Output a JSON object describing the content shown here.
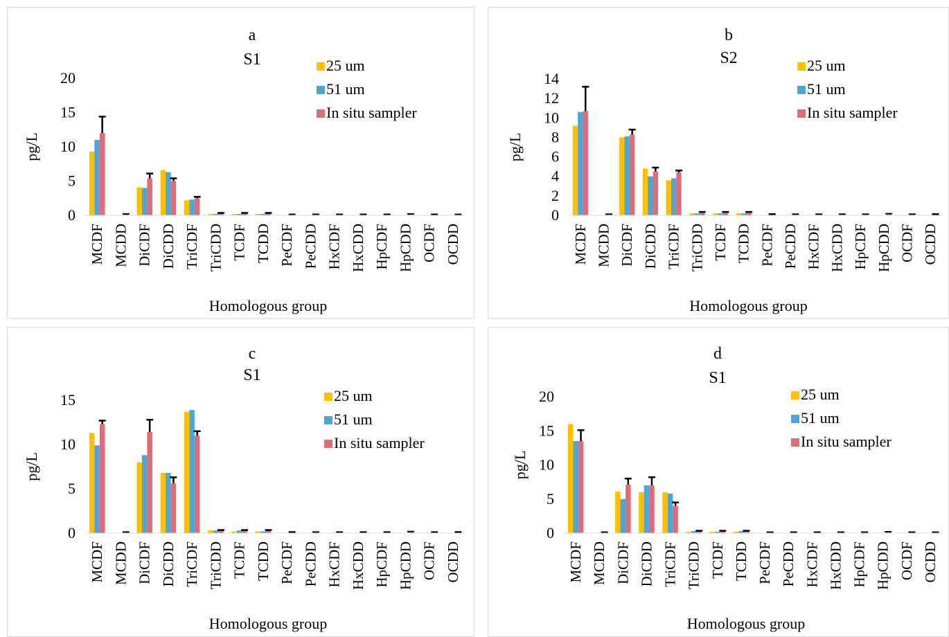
{
  "chart_data": [
    {
      "type": "bar",
      "panel_label": "a",
      "title": "S1",
      "xlabel": "Homologous group",
      "ylabel": "pg/L",
      "ylim": [
        0,
        20
      ],
      "yticks": [
        0,
        5,
        10,
        15,
        20
      ],
      "legend_position": "top-right",
      "categories": [
        "MCDF",
        "MCDD",
        "DiCDF",
        "DiCDD",
        "TriCDF",
        "TriCDD",
        "TCDF",
        "TCDD",
        "PeCDF",
        "PeCDD",
        "HxCDF",
        "HxCDD",
        "HpCDF",
        "HpCDD",
        "OCDF",
        "OCDD"
      ],
      "series": [
        {
          "name": "25 um",
          "color": "#FFC000",
          "values": [
            9.3,
            0,
            4.1,
            6.6,
            2.2,
            0.2,
            0.2,
            0.2,
            0,
            0,
            0,
            0,
            0,
            0,
            0,
            0
          ]
        },
        {
          "name": "51 um",
          "color": "#4FA6D6",
          "values": [
            11.0,
            0,
            4.0,
            6.3,
            2.3,
            0.2,
            0.2,
            0.2,
            0,
            0,
            0,
            0,
            0,
            0,
            0,
            0
          ]
        },
        {
          "name": "In situ sampler",
          "color": "#E06C75",
          "values": [
            12.0,
            0.1,
            5.4,
            5.0,
            2.5,
            0.3,
            0.3,
            0.3,
            0.1,
            0.05,
            0.05,
            0.05,
            0.05,
            0.1,
            0.05,
            0.1
          ],
          "errors": [
            2.4,
            0,
            0.7,
            0.4,
            0.2,
            0.05,
            0.05,
            0.05,
            0.02,
            0,
            0,
            0,
            0,
            0,
            0,
            0.02
          ]
        }
      ]
    },
    {
      "type": "bar",
      "panel_label": "b",
      "title": "S2",
      "xlabel": "Homologous group",
      "ylabel": "pg/L",
      "ylim": [
        0,
        14
      ],
      "yticks": [
        0,
        2,
        4,
        6,
        8,
        10,
        12,
        14
      ],
      "legend_position": "top-right",
      "categories": [
        "MCDF",
        "MCDD",
        "DiCDF",
        "DiCDD",
        "TriCDF",
        "TriCDD",
        "TCDF",
        "TCDD",
        "PeCDF",
        "PeCDD",
        "HxCDF",
        "HxCDD",
        "HpCDF",
        "HpCDD",
        "OCDF",
        "OCDD"
      ],
      "series": [
        {
          "name": "25 um",
          "color": "#FFC000",
          "values": [
            9.2,
            0,
            8.0,
            4.8,
            3.6,
            0.2,
            0.2,
            0.2,
            0,
            0,
            0,
            0,
            0,
            0,
            0,
            0
          ]
        },
        {
          "name": "51 um",
          "color": "#4FA6D6",
          "values": [
            10.6,
            0,
            8.1,
            4.0,
            3.8,
            0.2,
            0.2,
            0.2,
            0,
            0,
            0,
            0,
            0,
            0,
            0,
            0
          ]
        },
        {
          "name": "In situ sampler",
          "color": "#E06C75",
          "values": [
            10.7,
            0.05,
            8.3,
            4.5,
            4.4,
            0.3,
            0.3,
            0.3,
            0.1,
            0.05,
            0.05,
            0.05,
            0.05,
            0.1,
            0.05,
            0.1
          ],
          "errors": [
            2.5,
            0,
            0.5,
            0.4,
            0.2,
            0.05,
            0.05,
            0.05,
            0.02,
            0,
            0,
            0,
            0,
            0,
            0,
            0.02
          ]
        }
      ]
    },
    {
      "type": "bar",
      "panel_label": "c",
      "title": "S1",
      "xlabel": "Homologous group",
      "ylabel": "pg/L",
      "ylim": [
        0,
        15
      ],
      "yticks": [
        0,
        5,
        10,
        15
      ],
      "legend_position": "top-right",
      "categories": [
        "MCDF",
        "MCDD",
        "DiCDF",
        "DiCDD",
        "TriCDF",
        "TriCDD",
        "TCDF",
        "TCDD",
        "PeCDF",
        "PeCDD",
        "HxCDF",
        "HxCDD",
        "HpCDF",
        "HpCDD",
        "OCDF",
        "OCDD"
      ],
      "series": [
        {
          "name": "25 um",
          "color": "#FFC000",
          "values": [
            11.3,
            0,
            8.0,
            6.8,
            13.7,
            0.3,
            0.2,
            0.2,
            0,
            0,
            0,
            0,
            0,
            0,
            0,
            0
          ]
        },
        {
          "name": "51 um",
          "color": "#4FA6D6",
          "values": [
            9.9,
            0,
            8.8,
            6.8,
            13.9,
            0.3,
            0.3,
            0.2,
            0,
            0,
            0,
            0,
            0,
            0,
            0,
            0
          ]
        },
        {
          "name": "In situ sampler",
          "color": "#E06C75",
          "values": [
            12.3,
            0.05,
            11.4,
            5.6,
            11.0,
            0.3,
            0.3,
            0.3,
            0.1,
            0.05,
            0.05,
            0.05,
            0.05,
            0.1,
            0.05,
            0.1
          ],
          "errors": [
            0.4,
            0,
            1.4,
            0.7,
            0.5,
            0.05,
            0.05,
            0.05,
            0.02,
            0,
            0,
            0,
            0,
            0,
            0,
            0.02
          ]
        }
      ]
    },
    {
      "type": "bar",
      "panel_label": "d",
      "title": "S1",
      "xlabel": "Homologous group",
      "ylabel": "pg/L",
      "ylim": [
        0,
        20
      ],
      "yticks": [
        0,
        5,
        10,
        15,
        20
      ],
      "legend_position": "top-right",
      "categories": [
        "MCDF",
        "MCDD",
        "DiCDF",
        "DiCDD",
        "TriCDF",
        "TriCDD",
        "TCDF",
        "TCDD",
        "PeCDF",
        "PeCDD",
        "HxCDF",
        "HxCDD",
        "HpCDF",
        "HpCDD",
        "OCDF",
        "OCDD"
      ],
      "series": [
        {
          "name": "25 um",
          "color": "#FFC000",
          "values": [
            16.0,
            0,
            6.1,
            6.0,
            6.0,
            0.2,
            0.2,
            0.2,
            0,
            0,
            0,
            0,
            0,
            0,
            0,
            0
          ]
        },
        {
          "name": "51 um",
          "color": "#4FA6D6",
          "values": [
            13.5,
            0,
            5.0,
            7.0,
            5.8,
            0.3,
            0.2,
            0.3,
            0,
            0,
            0,
            0,
            0,
            0,
            0,
            0
          ]
        },
        {
          "name": "In situ sampler",
          "color": "#E06C75",
          "values": [
            13.5,
            0.05,
            7.1,
            7.0,
            4.0,
            0.3,
            0.3,
            0.3,
            0.1,
            0.05,
            0.05,
            0.05,
            0.05,
            0.1,
            0.05,
            0.1
          ],
          "errors": [
            1.6,
            0,
            0.9,
            1.2,
            0.5,
            0.05,
            0.05,
            0.05,
            0.02,
            0,
            0,
            0,
            0,
            0,
            0,
            0.02
          ]
        }
      ]
    }
  ]
}
